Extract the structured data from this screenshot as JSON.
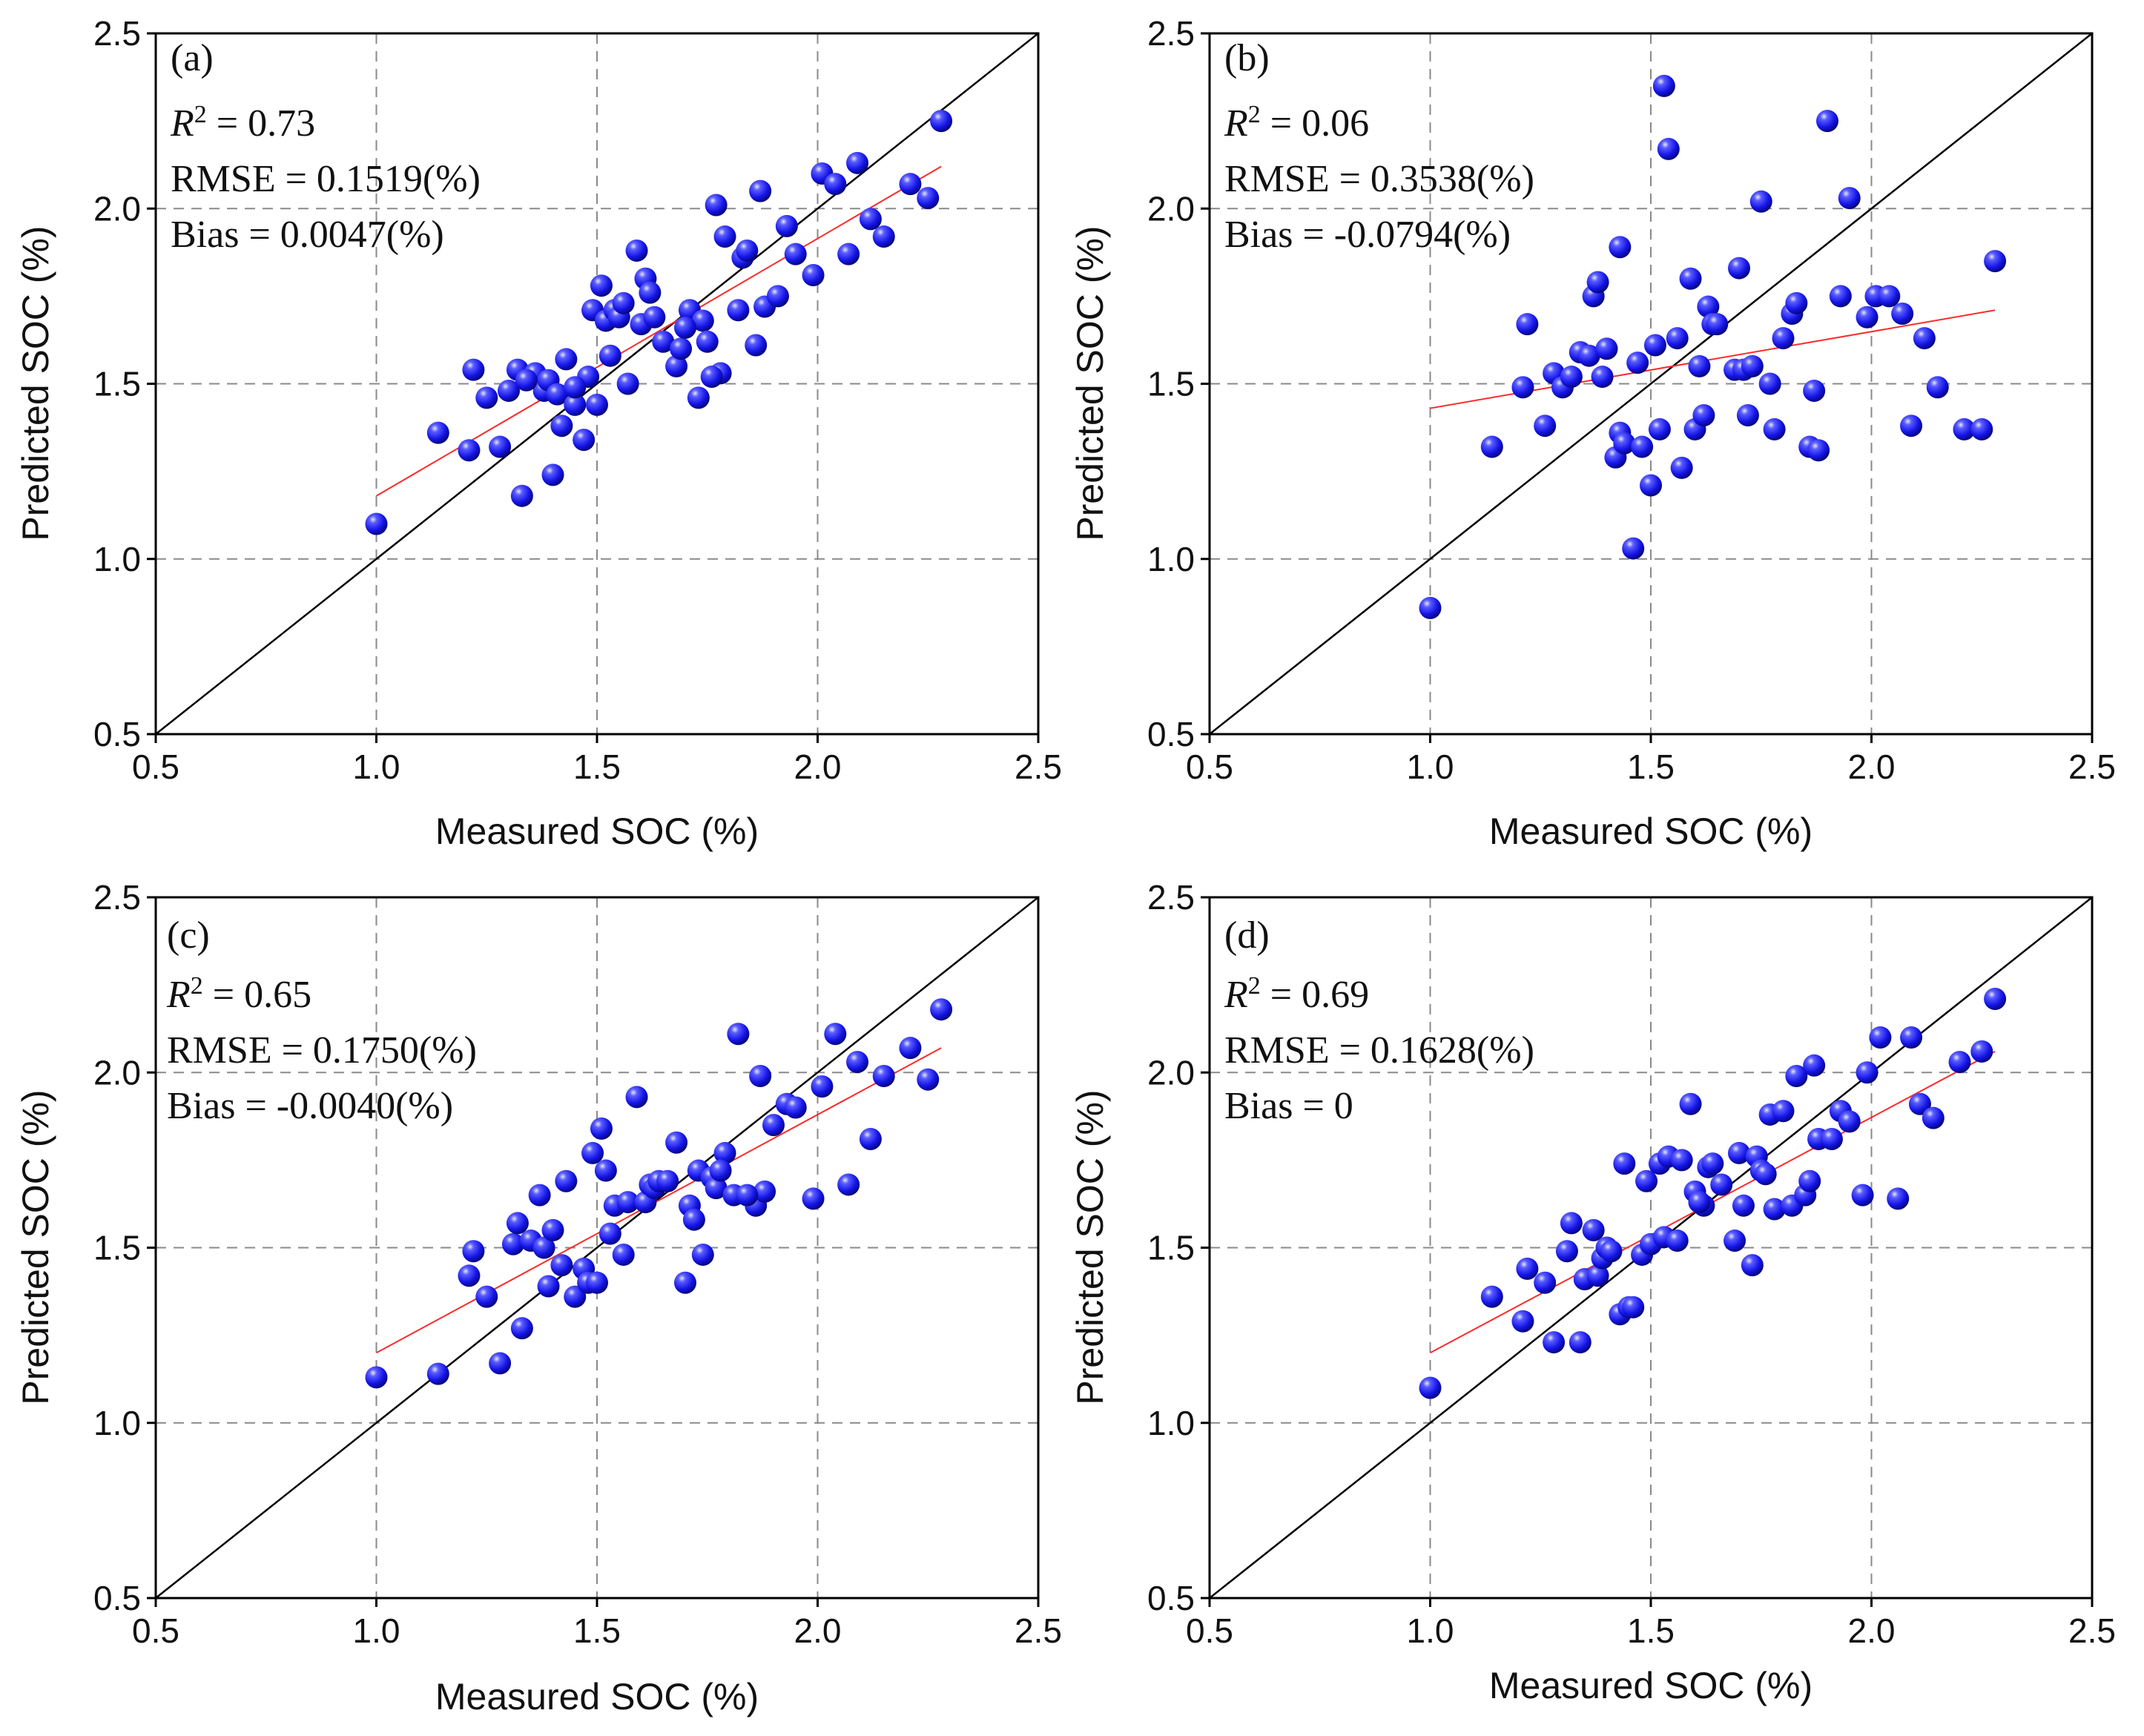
{
  "colors": {
    "point": "#1414e6",
    "fit_line": "#ff2a2a",
    "one_to_one": "#000000",
    "grid": "#8a8a8a"
  },
  "chart_data": [
    {
      "type": "scatter",
      "panel_label": "(a)",
      "r2_label": "R",
      "r2_sup": "2",
      "r2_value": " = 0.73",
      "rmse_text": "RMSE = 0.1519(%)",
      "bias_text": "Bias = 0.0047(%)",
      "xlabel": "Measured SOC (%)",
      "ylabel": "Predicted SOC (%)",
      "xlim": [
        0.5,
        2.5
      ],
      "ylim": [
        0.5,
        2.5
      ],
      "xticks": [
        "0.5",
        "1.0",
        "1.5",
        "2.0",
        "2.5"
      ],
      "yticks": [
        "0.5",
        "1.0",
        "1.5",
        "2.0",
        "2.5"
      ],
      "grid": true,
      "fit_line": {
        "x": [
          1.0,
          2.28
        ],
        "y": [
          1.18,
          2.12
        ]
      },
      "points": {
        "x": [
          1.0,
          1.14,
          1.21,
          1.22,
          1.25,
          1.28,
          1.3,
          1.32,
          1.33,
          1.36,
          1.38,
          1.4,
          1.39,
          1.41,
          1.42,
          1.43,
          1.45,
          1.47,
          1.48,
          1.49,
          1.5,
          1.51,
          1.52,
          1.53,
          1.54,
          1.55,
          1.57,
          1.59,
          1.6,
          1.61,
          1.62,
          1.63,
          1.65,
          1.68,
          1.69,
          1.71,
          1.73,
          1.74,
          1.75,
          1.77,
          1.78,
          1.79,
          1.82,
          1.83,
          1.84,
          1.86,
          1.87,
          1.88,
          1.91,
          1.93,
          1.95,
          1.99,
          2.01,
          2.04,
          2.07,
          2.09,
          2.12,
          2.15,
          2.21,
          2.25,
          2.28,
          1.56,
          1.7,
          1.76,
          1.45,
          1.34
        ],
        "y": [
          1.1,
          1.36,
          1.31,
          1.54,
          1.46,
          1.32,
          1.48,
          1.54,
          1.18,
          1.53,
          1.48,
          1.24,
          1.51,
          1.47,
          1.38,
          1.57,
          1.44,
          1.34,
          1.52,
          1.71,
          1.44,
          1.78,
          1.68,
          1.58,
          1.71,
          1.69,
          1.5,
          1.88,
          1.67,
          1.8,
          1.76,
          1.69,
          1.62,
          1.55,
          1.6,
          1.71,
          1.46,
          1.68,
          1.62,
          2.01,
          1.53,
          1.92,
          1.71,
          1.86,
          1.88,
          1.61,
          2.05,
          1.72,
          1.75,
          1.95,
          1.87,
          1.81,
          2.1,
          2.07,
          1.87,
          2.13,
          1.97,
          1.92,
          2.07,
          2.03,
          2.25,
          1.73,
          1.66,
          1.52,
          1.49,
          1.51
        ]
      }
    },
    {
      "type": "scatter",
      "panel_label": "(b)",
      "r2_label": "R",
      "r2_sup": "2",
      "r2_value": " = 0.06",
      "rmse_text": "RMSE = 0.3538(%)",
      "bias_text": "Bias = -0.0794(%)",
      "xlabel": "Measured SOC (%)",
      "ylabel": "Predicted SOC (%)",
      "xlim": [
        0.5,
        2.5
      ],
      "ylim": [
        0.5,
        2.5
      ],
      "xticks": [
        "0.5",
        "1.0",
        "1.5",
        "2.0",
        "2.5"
      ],
      "yticks": [
        "0.5",
        "1.0",
        "1.5",
        "2.0",
        "2.5"
      ],
      "grid": true,
      "fit_line": {
        "x": [
          1.0,
          2.28
        ],
        "y": [
          1.43,
          1.71
        ]
      },
      "points": {
        "x": [
          1.0,
          1.14,
          1.21,
          1.22,
          1.26,
          1.28,
          1.3,
          1.32,
          1.34,
          1.36,
          1.37,
          1.38,
          1.39,
          1.4,
          1.42,
          1.43,
          1.43,
          1.44,
          1.46,
          1.47,
          1.48,
          1.5,
          1.51,
          1.52,
          1.53,
          1.54,
          1.56,
          1.57,
          1.59,
          1.6,
          1.61,
          1.62,
          1.63,
          1.64,
          1.65,
          1.69,
          1.7,
          1.71,
          1.72,
          1.73,
          1.75,
          1.77,
          1.78,
          1.8,
          1.82,
          1.83,
          1.86,
          1.87,
          1.88,
          1.9,
          1.93,
          1.95,
          1.99,
          2.01,
          2.04,
          2.07,
          2.09,
          2.12,
          2.15,
          2.21,
          2.25,
          2.28
        ],
        "y": [
          0.86,
          1.32,
          1.49,
          1.67,
          1.38,
          1.53,
          1.49,
          1.52,
          1.59,
          1.58,
          1.75,
          1.79,
          1.52,
          1.6,
          1.29,
          1.89,
          1.36,
          1.33,
          1.03,
          1.56,
          1.32,
          1.21,
          1.61,
          1.37,
          2.35,
          2.17,
          1.63,
          1.26,
          1.8,
          1.37,
          1.55,
          1.41,
          1.72,
          1.67,
          1.67,
          1.54,
          1.83,
          1.54,
          1.41,
          1.55,
          2.02,
          1.5,
          1.37,
          1.63,
          1.7,
          1.73,
          1.32,
          1.48,
          1.31,
          2.25,
          1.75,
          2.03,
          1.69,
          1.75,
          1.75,
          1.7,
          1.38,
          1.63,
          1.49,
          1.37,
          1.37,
          1.85
        ]
      }
    },
    {
      "type": "scatter",
      "panel_label": "(c)",
      "r2_label": "R",
      "r2_sup": "2",
      "r2_value": " = 0.65",
      "rmse_text": "RMSE = 0.1750(%)",
      "bias_text": "Bias = -0.0040(%)",
      "xlabel": "Measured SOC (%)",
      "ylabel": "Predicted SOC (%)",
      "xlim": [
        0.5,
        2.5
      ],
      "ylim": [
        0.5,
        2.5
      ],
      "xticks": [
        "0.5",
        "1.0",
        "1.5",
        "2.0",
        "2.5"
      ],
      "yticks": [
        "0.5",
        "1.0",
        "1.5",
        "2.0",
        "2.5"
      ],
      "grid": true,
      "fit_line": {
        "x": [
          1.0,
          2.28
        ],
        "y": [
          1.2,
          2.07
        ]
      },
      "points": {
        "x": [
          1.0,
          1.14,
          1.21,
          1.22,
          1.25,
          1.28,
          1.31,
          1.32,
          1.33,
          1.35,
          1.37,
          1.38,
          1.39,
          1.4,
          1.42,
          1.43,
          1.45,
          1.47,
          1.48,
          1.49,
          1.5,
          1.51,
          1.52,
          1.53,
          1.54,
          1.56,
          1.57,
          1.59,
          1.61,
          1.62,
          1.63,
          1.64,
          1.66,
          1.7,
          1.71,
          1.72,
          1.73,
          1.74,
          1.76,
          1.77,
          1.79,
          1.81,
          1.82,
          1.86,
          1.87,
          1.88,
          1.9,
          1.93,
          1.95,
          1.99,
          2.01,
          2.04,
          2.07,
          2.09,
          2.12,
          2.15,
          2.21,
          2.25,
          2.28,
          1.84,
          1.68,
          1.78
        ],
        "y": [
          1.13,
          1.14,
          1.42,
          1.49,
          1.36,
          1.17,
          1.51,
          1.57,
          1.27,
          1.52,
          1.65,
          1.5,
          1.39,
          1.55,
          1.45,
          1.69,
          1.36,
          1.44,
          1.4,
          1.77,
          1.4,
          1.84,
          1.72,
          1.54,
          1.62,
          1.48,
          1.63,
          1.93,
          1.63,
          1.68,
          1.67,
          1.69,
          1.69,
          1.4,
          1.62,
          1.58,
          1.72,
          1.48,
          1.7,
          1.67,
          1.77,
          1.65,
          2.11,
          1.62,
          1.99,
          1.66,
          1.85,
          1.91,
          1.9,
          1.64,
          1.96,
          2.11,
          1.68,
          2.03,
          1.81,
          1.99,
          2.07,
          1.98,
          2.18,
          1.65,
          1.8,
          1.72
        ]
      }
    },
    {
      "type": "scatter",
      "panel_label": "(d)",
      "r2_label": "R",
      "r2_sup": "2",
      "r2_value": " = 0.69",
      "rmse_text": "RMSE = 0.1628(%)",
      "bias_text": "Bias = 0",
      "xlabel": "Measured SOC (%)",
      "ylabel": "Predicted SOC (%)",
      "xlim": [
        0.5,
        2.5
      ],
      "ylim": [
        0.5,
        2.5
      ],
      "xticks": [
        "0.5",
        "1.0",
        "1.5",
        "2.0",
        "2.5"
      ],
      "yticks": [
        "0.5",
        "1.0",
        "1.5",
        "2.0",
        "2.5"
      ],
      "grid": true,
      "fit_line": {
        "x": [
          1.0,
          2.28
        ],
        "y": [
          1.2,
          2.06
        ]
      },
      "points": {
        "x": [
          1.0,
          1.14,
          1.21,
          1.22,
          1.26,
          1.28,
          1.31,
          1.32,
          1.34,
          1.35,
          1.37,
          1.38,
          1.39,
          1.4,
          1.41,
          1.43,
          1.44,
          1.45,
          1.46,
          1.48,
          1.49,
          1.5,
          1.52,
          1.53,
          1.54,
          1.56,
          1.57,
          1.59,
          1.6,
          1.62,
          1.63,
          1.64,
          1.66,
          1.69,
          1.7,
          1.71,
          1.73,
          1.74,
          1.75,
          1.77,
          1.78,
          1.8,
          1.82,
          1.83,
          1.85,
          1.86,
          1.87,
          1.88,
          1.91,
          1.93,
          1.95,
          1.98,
          1.99,
          2.02,
          2.06,
          2.09,
          2.11,
          2.14,
          2.2,
          2.25,
          2.28,
          1.61,
          1.76
        ],
        "y": [
          1.1,
          1.36,
          1.29,
          1.44,
          1.4,
          1.23,
          1.49,
          1.57,
          1.23,
          1.41,
          1.55,
          1.42,
          1.47,
          1.5,
          1.49,
          1.31,
          1.74,
          1.33,
          1.33,
          1.48,
          1.69,
          1.51,
          1.74,
          1.53,
          1.76,
          1.52,
          1.75,
          1.91,
          1.66,
          1.62,
          1.73,
          1.74,
          1.68,
          1.52,
          1.77,
          1.62,
          1.45,
          1.76,
          1.72,
          1.88,
          1.61,
          1.89,
          1.62,
          1.99,
          1.65,
          1.69,
          2.02,
          1.81,
          1.81,
          1.89,
          1.86,
          1.65,
          2.0,
          2.1,
          1.64,
          2.1,
          1.91,
          1.87,
          2.03,
          2.06,
          2.21,
          1.63,
          1.71
        ]
      }
    }
  ]
}
